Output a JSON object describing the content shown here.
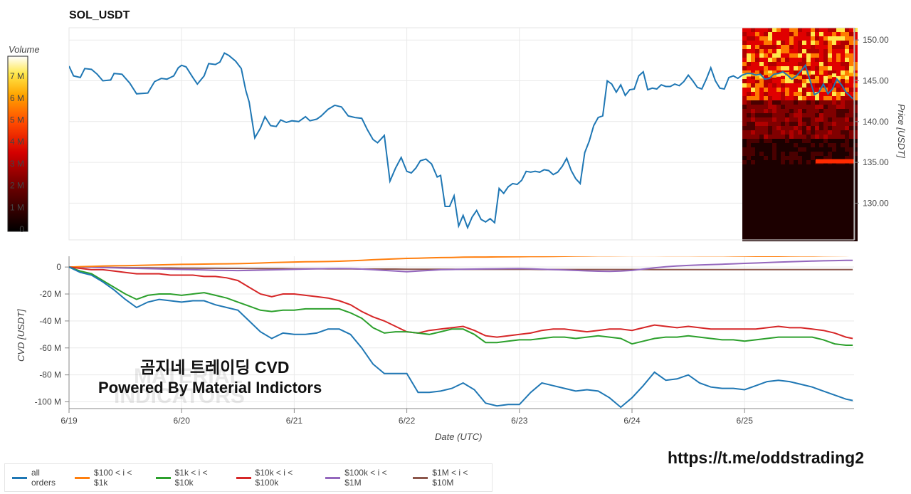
{
  "header": {
    "symbol": "SOL_USDT"
  },
  "watermark": {
    "line1": "MATERIAL",
    "line2": "INDICATORS"
  },
  "overlay": {
    "line1": "곰지네 트레이딩 CVD",
    "line2": "Powered By Material Indictors"
  },
  "footer": {
    "url": "https://t.me/oddstrading2"
  },
  "colors": {
    "price": "#1f77b4",
    "all_orders": "#1f77b4",
    "r100_1k": "#ff7f0e",
    "r1k_10k": "#2ca02c",
    "r10k_100k": "#d62728",
    "r100k_1m": "#9467bd",
    "r1m_10m": "#8c564b"
  },
  "chart_data": [
    {
      "type": "line",
      "title": "SOL_USDT",
      "ylabel": "Price [USDT]",
      "ylim": [
        125.5,
        151.5
      ],
      "yticks": [
        130,
        135,
        140,
        145,
        150
      ],
      "ytick_labels": [
        "130.00",
        "135.00",
        "140.00",
        "145.00",
        "150.00"
      ],
      "grid": true,
      "x_days": [
        0,
        0.04,
        0.1,
        0.14,
        0.2,
        0.25,
        0.3,
        0.37,
        0.4,
        0.47,
        0.54,
        0.6,
        0.7,
        0.76,
        0.82,
        0.87,
        0.93,
        0.97,
        1.0,
        1.04,
        1.1,
        1.14,
        1.2,
        1.24,
        1.3,
        1.34,
        1.38,
        1.42,
        1.48,
        1.53,
        1.57,
        1.6,
        1.65,
        1.7,
        1.74,
        1.79,
        1.84,
        1.88,
        1.93,
        1.98,
        2.04,
        2.1,
        2.14,
        2.2,
        2.24,
        2.3,
        2.36,
        2.42,
        2.48,
        2.54,
        2.6,
        2.65,
        2.7,
        2.74,
        2.8,
        2.85,
        2.9,
        2.95,
        3.0,
        3.04,
        3.08,
        3.12,
        3.17,
        3.22,
        3.27,
        3.3,
        3.34,
        3.38,
        3.42,
        3.46,
        3.5,
        3.54,
        3.58,
        3.62,
        3.66,
        3.7,
        3.74,
        3.78,
        3.82,
        3.86,
        3.9,
        3.94,
        3.98,
        4.02,
        4.06,
        4.1,
        4.14,
        4.18,
        4.22,
        4.26,
        4.3,
        4.34,
        4.38,
        4.42,
        4.46,
        4.5,
        4.54,
        4.58,
        4.62,
        4.66,
        4.7,
        4.74,
        4.78,
        4.82,
        4.86,
        4.9,
        4.94,
        4.98,
        5.02,
        5.06,
        5.1,
        5.14,
        5.18,
        5.22,
        5.26,
        5.3,
        5.34,
        5.38,
        5.42,
        5.46,
        5.5,
        5.54,
        5.58,
        5.62,
        5.66,
        5.7,
        5.74,
        5.78,
        5.82,
        5.86,
        5.9,
        5.94,
        5.98,
        6.02,
        6.06,
        6.1,
        6.14,
        6.18,
        6.22,
        6.26,
        6.3,
        6.34,
        6.38,
        6.42,
        6.46,
        6.5,
        6.54,
        6.58,
        6.62,
        6.66,
        6.7,
        6.74,
        6.78,
        6.82,
        6.86,
        6.9,
        6.94,
        6.96
      ],
      "values": [
        146.8,
        145.6,
        145.4,
        146.5,
        146.4,
        145.8,
        145.0,
        145.1,
        145.9,
        145.8,
        144.7,
        143.4,
        143.5,
        144.9,
        145.3,
        145.2,
        145.6,
        146.6,
        146.9,
        146.7,
        145.4,
        144.6,
        145.6,
        147.1,
        147.0,
        147.3,
        148.4,
        148.1,
        147.4,
        146.5,
        143.8,
        142.4,
        138.0,
        139.2,
        140.6,
        139.5,
        139.4,
        140.2,
        139.9,
        140.1,
        140.0,
        140.6,
        140.1,
        140.3,
        140.7,
        141.5,
        142.0,
        141.8,
        140.7,
        140.5,
        140.4,
        139.0,
        137.8,
        137.4,
        138.3,
        132.7,
        134.3,
        135.6,
        133.9,
        133.7,
        134.3,
        135.2,
        135.4,
        134.8,
        133.2,
        133.4,
        129.6,
        129.6,
        130.9,
        127.2,
        128.5,
        127.0,
        128.3,
        129.1,
        128.0,
        127.7,
        128.1,
        127.6,
        131.8,
        131.2,
        132.0,
        132.4,
        132.3,
        132.8,
        133.9,
        133.8,
        133.9,
        133.8,
        134.1,
        134.0,
        133.5,
        133.8,
        134.5,
        135.5,
        134.0,
        133.0,
        132.4,
        136.2,
        137.6,
        139.5,
        140.5,
        140.7,
        145.0,
        144.6,
        143.6,
        144.5,
        143.2,
        143.9,
        144.0,
        145.6,
        146.1,
        143.9,
        144.1,
        144.0,
        144.5,
        144.3,
        144.3,
        144.6,
        144.4,
        144.9,
        145.7,
        145.0,
        144.2,
        144.0,
        145.2,
        146.6,
        145.0,
        144.1,
        144.0,
        145.4,
        145.6,
        145.3,
        145.7,
        145.9,
        145.9,
        145.7,
        145.8,
        145.2,
        145.3,
        145.8,
        145.9,
        146.1,
        145.7,
        145.2,
        145.6,
        146.2,
        146.9,
        145.1,
        143.3,
        143.6,
        144.6,
        143.4,
        144.0,
        145.2,
        144.5,
        143.6,
        143.1,
        142.8
      ]
    },
    {
      "type": "heatmap",
      "xlabel": "",
      "colorbar_title": "Volume",
      "colorbar_ticks": [
        "0",
        "1 M",
        "2 M",
        "3 M",
        "4 M",
        "5 M",
        "6 M",
        "7 M"
      ],
      "note": "Order-book volume heatmap on the right edge of the price panel"
    },
    {
      "type": "line",
      "xlabel": "Date (UTC)",
      "ylabel": "CVD [USDT]",
      "ylim": [
        -105,
        8
      ],
      "yticks": [
        0,
        -20,
        -40,
        -60,
        -80,
        -100
      ],
      "ytick_labels": [
        "0",
        "-20 M",
        "-40 M",
        "-60 M",
        "-80 M",
        "-100 M"
      ],
      "xticks": [
        "6/19",
        "6/20",
        "6/21",
        "6/22",
        "6/23",
        "6/24",
        "6/25"
      ],
      "x_days": [
        0,
        0.1,
        0.2,
        0.3,
        0.4,
        0.5,
        0.6,
        0.7,
        0.8,
        0.9,
        1.0,
        1.1,
        1.2,
        1.3,
        1.4,
        1.5,
        1.6,
        1.7,
        1.8,
        1.9,
        2.0,
        2.1,
        2.2,
        2.3,
        2.4,
        2.5,
        2.6,
        2.7,
        2.8,
        2.9,
        3.0,
        3.1,
        3.2,
        3.3,
        3.4,
        3.5,
        3.6,
        3.7,
        3.8,
        3.9,
        4.0,
        4.1,
        4.2,
        4.3,
        4.4,
        4.5,
        4.6,
        4.7,
        4.8,
        4.9,
        5.0,
        5.1,
        5.2,
        5.3,
        5.4,
        5.5,
        5.6,
        5.7,
        5.8,
        5.9,
        6.0,
        6.1,
        6.2,
        6.3,
        6.4,
        6.5,
        6.6,
        6.7,
        6.8,
        6.9,
        6.96
      ],
      "series": [
        {
          "name": "all orders",
          "values": [
            0,
            -4,
            -6,
            -11,
            -17,
            -24,
            -30,
            -26,
            -24,
            -25,
            -26,
            -25,
            -25,
            -28,
            -30,
            -32,
            -40,
            -48,
            -53,
            -49,
            -50,
            -50,
            -49,
            -46,
            -46,
            -50,
            -60,
            -72,
            -79,
            -79,
            -79,
            -93,
            -93,
            -92,
            -90,
            -86,
            -91,
            -101,
            -103,
            -102,
            -102,
            -93,
            -86,
            -88,
            -90,
            -92,
            -91,
            -92,
            -97,
            -104,
            -97,
            -88,
            -78,
            -84,
            -83,
            -80,
            -86,
            -89,
            -90,
            -90,
            -91,
            -88,
            -85,
            -84,
            -85,
            -87,
            -89,
            -92,
            -95,
            -98,
            -99
          ]
        },
        {
          "name": "$100 < i < $1k",
          "values": [
            0,
            0.3,
            0.5,
            0.7,
            0.9,
            1.0,
            1.2,
            1.4,
            1.6,
            1.8,
            2.0,
            2.1,
            2.2,
            2.3,
            2.4,
            2.5,
            2.7,
            3.0,
            3.3,
            3.5,
            3.7,
            3.9,
            4.0,
            4.1,
            4.3,
            4.6,
            5.0,
            5.4,
            5.8,
            6.1,
            6.4,
            6.6,
            6.8,
            7.0,
            7.1,
            7.3,
            7.4,
            7.4,
            7.5,
            7.6,
            7.7,
            7.8,
            7.8,
            7.9,
            8.0,
            8.1,
            8.2,
            8.3,
            8.3,
            8.4,
            8.5,
            8.5,
            8.5,
            8.4,
            8.4,
            8.4,
            8.3,
            8.3,
            8.3,
            8.2,
            8.1,
            8.0,
            8.0,
            8.0,
            8.1,
            8.2,
            8.2,
            8.3,
            8.4,
            8.5,
            8.6
          ]
        },
        {
          "name": "$1k < i < $10k",
          "values": [
            0,
            -3,
            -5,
            -10,
            -15,
            -20,
            -24,
            -21,
            -20,
            -20,
            -21,
            -20,
            -19,
            -21,
            -23,
            -26,
            -29,
            -32,
            -33,
            -32,
            -32,
            -31,
            -31,
            -31,
            -31,
            -34,
            -38,
            -45,
            -49,
            -48,
            -48,
            -49,
            -50,
            -48,
            -46,
            -46,
            -50,
            -56,
            -56,
            -55,
            -54,
            -54,
            -53,
            -52,
            -52,
            -53,
            -52,
            -51,
            -52,
            -53,
            -57,
            -55,
            -53,
            -52,
            -52,
            -51,
            -52,
            -53,
            -54,
            -54,
            -55,
            -54,
            -53,
            -52,
            -52,
            -52,
            -52,
            -54,
            -57,
            -58,
            -58
          ]
        },
        {
          "name": "$10k < i < $100k",
          "values": [
            0,
            -1,
            -2,
            -2,
            -3,
            -4,
            -5,
            -5,
            -5,
            -6,
            -6,
            -6,
            -7,
            -7,
            -8,
            -10,
            -15,
            -20,
            -22,
            -20,
            -20,
            -21,
            -22,
            -23,
            -25,
            -28,
            -33,
            -37,
            -40,
            -44,
            -48,
            -49,
            -47,
            -46,
            -45,
            -44,
            -47,
            -51,
            -52,
            -51,
            -50,
            -49,
            -47,
            -46,
            -46,
            -47,
            -48,
            -47,
            -46,
            -46,
            -47,
            -45,
            -43,
            -44,
            -45,
            -44,
            -45,
            -46,
            -46,
            -46,
            -46,
            -46,
            -45,
            -44,
            -45,
            -45,
            -46,
            -47,
            -49,
            -52,
            -53
          ]
        },
        {
          "name": "$100k < i < $1M",
          "values": [
            0,
            0,
            -0.2,
            -0.4,
            -0.6,
            -0.8,
            -1,
            -1.2,
            -1.4,
            -1.6,
            -1.8,
            -2,
            -2.2,
            -2.4,
            -2.5,
            -2.6,
            -2.5,
            -2.3,
            -2.1,
            -1.9,
            -1.7,
            -1.5,
            -1.3,
            -1.2,
            -1.1,
            -1.2,
            -1.5,
            -2.0,
            -2.5,
            -3.0,
            -3.5,
            -3.0,
            -2.5,
            -2.0,
            -1.8,
            -1.6,
            -1.5,
            -1.4,
            -1.3,
            -1.2,
            -1.1,
            -1.3,
            -1.6,
            -1.9,
            -2.2,
            -2.5,
            -2.8,
            -3.1,
            -3.2,
            -3.0,
            -2.5,
            -1.5,
            -0.6,
            0.2,
            0.8,
            1.2,
            1.5,
            1.8,
            2.1,
            2.4,
            2.7,
            3.0,
            3.3,
            3.6,
            3.9,
            4.2,
            4.4,
            4.6,
            4.8,
            5.0,
            5.0
          ]
        },
        {
          "name": "$1M < i < $10M",
          "values": [
            0,
            -0.1,
            -0.2,
            -0.3,
            -0.4,
            -0.5,
            -0.6,
            -0.6,
            -0.7,
            -0.7,
            -0.8,
            -0.8,
            -0.9,
            -0.9,
            -1.0,
            -1.0,
            -1.1,
            -1.1,
            -1.2,
            -1.2,
            -1.3,
            -1.3,
            -1.3,
            -1.4,
            -1.4,
            -1.4,
            -1.5,
            -1.5,
            -1.5,
            -1.5,
            -1.6,
            -1.6,
            -1.6,
            -1.6,
            -1.6,
            -1.7,
            -1.7,
            -1.7,
            -1.7,
            -1.7,
            -1.7,
            -1.7,
            -1.8,
            -1.8,
            -1.8,
            -1.8,
            -1.8,
            -1.8,
            -1.8,
            -1.8,
            -1.8,
            -1.8,
            -1.9,
            -1.9,
            -1.9,
            -1.9,
            -1.9,
            -1.9,
            -1.9,
            -1.9,
            -1.9,
            -1.9,
            -1.9,
            -1.9,
            -1.9,
            -1.9,
            -1.9,
            -1.9,
            -1.9,
            -1.9,
            -1.9
          ]
        }
      ],
      "legend": "bottom"
    }
  ]
}
